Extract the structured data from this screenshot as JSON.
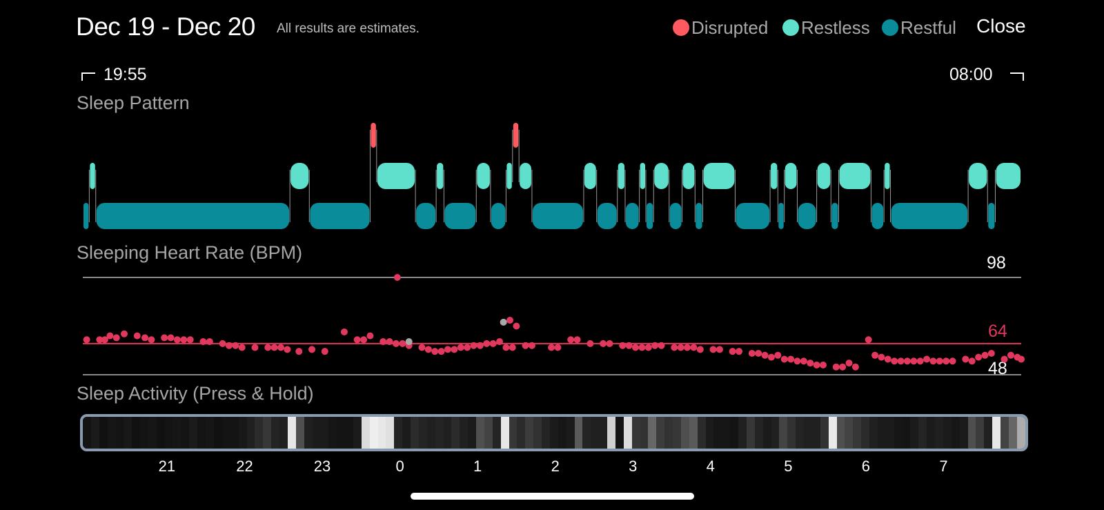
{
  "header": {
    "date_range": "Dec 19 - Dec 20",
    "estimates_note": "All results are estimates.",
    "close_label": "Close"
  },
  "legend": [
    {
      "label": "Disrupted",
      "color": "#ff5a5f"
    },
    {
      "label": "Restless",
      "color": "#5fe0cc"
    },
    {
      "label": "Restful",
      "color": "#0a8c9b"
    }
  ],
  "time_range": {
    "start": "19:55",
    "end": "08:00"
  },
  "sleep_pattern": {
    "title": "Sleep Pattern",
    "colors": {
      "disrupted": "#ff5a5f",
      "restless": "#5fe0cc",
      "restful": "#0a8c9b"
    },
    "segments": [
      {
        "stage": "restful",
        "start": "19:55",
        "end": "20:00"
      },
      {
        "stage": "restless",
        "start": "20:00",
        "end": "20:05"
      },
      {
        "stage": "restful",
        "start": "20:05",
        "end": "22:35"
      },
      {
        "stage": "restless",
        "start": "22:35",
        "end": "22:50"
      },
      {
        "stage": "restful",
        "start": "22:50",
        "end": "23:37"
      },
      {
        "stage": "disrupted",
        "start": "23:37",
        "end": "23:42"
      },
      {
        "stage": "restless",
        "start": "23:42",
        "end": "00:12"
      },
      {
        "stage": "restful",
        "start": "00:12",
        "end": "00:28"
      },
      {
        "stage": "restless",
        "start": "00:28",
        "end": "00:34"
      },
      {
        "stage": "restful",
        "start": "00:34",
        "end": "00:59"
      },
      {
        "stage": "restless",
        "start": "00:59",
        "end": "01:10"
      },
      {
        "stage": "restful",
        "start": "01:10",
        "end": "01:22"
      },
      {
        "stage": "restless",
        "start": "01:22",
        "end": "01:27"
      },
      {
        "stage": "disrupted",
        "start": "01:27",
        "end": "01:32"
      },
      {
        "stage": "restless",
        "start": "01:32",
        "end": "01:42"
      },
      {
        "stage": "restful",
        "start": "01:42",
        "end": "02:22"
      },
      {
        "stage": "restless",
        "start": "02:22",
        "end": "02:32"
      },
      {
        "stage": "restful",
        "start": "02:32",
        "end": "02:48"
      },
      {
        "stage": "restless",
        "start": "02:48",
        "end": "02:54"
      },
      {
        "stage": "restful",
        "start": "02:54",
        "end": "03:05"
      },
      {
        "stage": "restless",
        "start": "03:05",
        "end": "03:10"
      },
      {
        "stage": "restful",
        "start": "03:10",
        "end": "03:16"
      },
      {
        "stage": "restless",
        "start": "03:16",
        "end": "03:28"
      },
      {
        "stage": "restful",
        "start": "03:28",
        "end": "03:38"
      },
      {
        "stage": "restless",
        "start": "03:38",
        "end": "03:48"
      },
      {
        "stage": "restful",
        "start": "03:48",
        "end": "03:54"
      },
      {
        "stage": "restless",
        "start": "03:54",
        "end": "04:19"
      },
      {
        "stage": "restful",
        "start": "04:19",
        "end": "04:46"
      },
      {
        "stage": "restless",
        "start": "04:46",
        "end": "04:52"
      },
      {
        "stage": "restful",
        "start": "04:52",
        "end": "04:57"
      },
      {
        "stage": "restless",
        "start": "04:57",
        "end": "05:07"
      },
      {
        "stage": "restful",
        "start": "05:07",
        "end": "05:22"
      },
      {
        "stage": "restless",
        "start": "05:22",
        "end": "05:33"
      },
      {
        "stage": "restful",
        "start": "05:33",
        "end": "05:39"
      },
      {
        "stage": "restless",
        "start": "05:39",
        "end": "06:04"
      },
      {
        "stage": "restful",
        "start": "06:04",
        "end": "06:14"
      },
      {
        "stage": "restless",
        "start": "06:14",
        "end": "06:19"
      },
      {
        "stage": "restful",
        "start": "06:19",
        "end": "07:19"
      },
      {
        "stage": "restless",
        "start": "07:19",
        "end": "07:34"
      },
      {
        "stage": "restful",
        "start": "07:34",
        "end": "07:40"
      },
      {
        "stage": "restless",
        "start": "07:40",
        "end": "08:00"
      }
    ]
  },
  "heart_rate": {
    "title": "Sleeping Heart Rate (BPM)",
    "max_label": "98",
    "avg_label": "64",
    "min_label": "48",
    "max": 98,
    "avg": 64,
    "min": 48,
    "point_color": "#e3385e",
    "outlier_color": "#a8a8a8",
    "points": [
      [
        "19:58",
        66
      ],
      [
        "20:08",
        66
      ],
      [
        "20:12",
        66
      ],
      [
        "20:16",
        68
      ],
      [
        "20:21",
        67
      ],
      [
        "20:27",
        69
      ],
      [
        "20:37",
        68
      ],
      [
        "20:43",
        67
      ],
      [
        "20:48",
        66
      ],
      [
        "20:58",
        67
      ],
      [
        "21:03",
        67
      ],
      [
        "21:08",
        66
      ],
      [
        "21:13",
        66
      ],
      [
        "21:18",
        66
      ],
      [
        "21:28",
        65
      ],
      [
        "21:33",
        65
      ],
      [
        "21:43",
        64
      ],
      [
        "21:48",
        63
      ],
      [
        "21:53",
        63
      ],
      [
        "21:58",
        62
      ],
      [
        "22:08",
        62
      ],
      [
        "22:18",
        62
      ],
      [
        "22:23",
        62
      ],
      [
        "22:28",
        62
      ],
      [
        "22:33",
        61
      ],
      [
        "22:42",
        60
      ],
      [
        "22:52",
        61
      ],
      [
        "23:02",
        60
      ],
      [
        "23:17",
        70
      ],
      [
        "23:27",
        66
      ],
      [
        "23:32",
        66
      ],
      [
        "23:37",
        68
      ],
      [
        "23:47",
        65
      ],
      [
        "23:52",
        65
      ],
      [
        "23:57",
        64
      ],
      [
        "00:02",
        64
      ],
      [
        "00:07",
        63
      ],
      [
        "00:17",
        62
      ],
      [
        "00:22",
        61
      ],
      [
        "00:27",
        60
      ],
      [
        "00:32",
        60
      ],
      [
        "00:37",
        61
      ],
      [
        "00:42",
        61
      ],
      [
        "00:47",
        62
      ],
      [
        "00:52",
        62
      ],
      [
        "00:57",
        63
      ],
      [
        "01:02",
        63
      ],
      [
        "01:07",
        64
      ],
      [
        "01:12",
        64
      ],
      [
        "01:17",
        65
      ],
      [
        "01:22",
        62
      ],
      [
        "01:27",
        62
      ],
      [
        "01:37",
        63
      ],
      [
        "01:42",
        63
      ],
      [
        "01:57",
        62
      ],
      [
        "02:02",
        62
      ],
      [
        "02:12",
        66
      ],
      [
        "02:17",
        66
      ],
      [
        "02:27",
        64
      ],
      [
        "02:37",
        64
      ],
      [
        "02:42",
        64
      ],
      [
        "02:52",
        63
      ],
      [
        "02:57",
        63
      ],
      [
        "03:02",
        62
      ],
      [
        "03:07",
        62
      ],
      [
        "03:12",
        62
      ],
      [
        "03:17",
        63
      ],
      [
        "03:22",
        63
      ],
      [
        "03:32",
        62
      ],
      [
        "03:37",
        62
      ],
      [
        "03:42",
        62
      ],
      [
        "03:47",
        62
      ],
      [
        "03:52",
        61
      ],
      [
        "04:02",
        61
      ],
      [
        "04:07",
        61
      ],
      [
        "04:17",
        60
      ],
      [
        "04:22",
        60
      ],
      [
        "04:32",
        59
      ],
      [
        "04:37",
        59
      ],
      [
        "04:42",
        58
      ],
      [
        "04:47",
        57
      ],
      [
        "04:52",
        58
      ],
      [
        "04:57",
        56
      ],
      [
        "05:02",
        56
      ],
      [
        "05:07",
        55
      ],
      [
        "05:12",
        55
      ],
      [
        "05:17",
        54
      ],
      [
        "05:22",
        53
      ],
      [
        "05:27",
        53
      ],
      [
        "05:37",
        52
      ],
      [
        "05:42",
        52
      ],
      [
        "05:47",
        54
      ],
      [
        "05:52",
        52
      ],
      [
        "06:02",
        66
      ],
      [
        "06:07",
        58
      ],
      [
        "06:12",
        57
      ],
      [
        "06:17",
        56
      ],
      [
        "06:22",
        55
      ],
      [
        "06:27",
        55
      ],
      [
        "06:32",
        55
      ],
      [
        "06:37",
        55
      ],
      [
        "06:42",
        55
      ],
      [
        "06:47",
        56
      ],
      [
        "06:52",
        55
      ],
      [
        "06:57",
        55
      ],
      [
        "07:02",
        55
      ],
      [
        "07:07",
        55
      ],
      [
        "07:17",
        56
      ],
      [
        "07:22",
        55
      ],
      [
        "07:27",
        57
      ],
      [
        "07:32",
        58
      ],
      [
        "07:37",
        59
      ],
      [
        "07:47",
        56
      ],
      [
        "07:52",
        58
      ],
      [
        "07:57",
        57
      ],
      [
        "08:00",
        56
      ],
      [
        "23:58",
        98
      ],
      [
        "01:25",
        76
      ],
      [
        "01:30",
        73
      ]
    ],
    "outliers": [
      [
        "00:07",
        65
      ],
      [
        "01:20",
        75
      ]
    ]
  },
  "sleep_activity": {
    "title": "Sleep Activity (Press & Hold)",
    "levels": [
      0.05,
      0.08,
      0.04,
      0.06,
      0.05,
      0.07,
      0.04,
      0.05,
      0.06,
      0.04,
      0.05,
      0.06,
      0.05,
      0.08,
      0.05,
      0.06,
      0.04,
      0.05,
      0.05,
      0.07,
      0.1,
      0.15,
      0.2,
      0.12,
      0.1,
      0.95,
      0.3,
      0.1,
      0.08,
      0.08,
      0.06,
      0.05,
      0.05,
      0.08,
      0.9,
      0.98,
      0.95,
      0.92,
      0.12,
      0.08,
      0.15,
      0.12,
      0.1,
      0.12,
      0.1,
      0.15,
      0.1,
      0.08,
      0.3,
      0.25,
      0.12,
      0.95,
      0.2,
      0.15,
      0.22,
      0.18,
      0.12,
      0.08,
      0.06,
      0.08,
      0.35,
      0.12,
      0.1,
      0.1,
      0.85,
      0.05,
      0.9,
      0.2,
      0.18,
      0.4,
      0.22,
      0.18,
      0.2,
      0.3,
      0.35,
      0.15,
      0.08,
      0.06,
      0.06,
      0.05,
      0.1,
      0.2,
      0.12,
      0.08,
      0.1,
      0.25,
      0.18,
      0.12,
      0.1,
      0.1,
      0.18,
      0.96,
      0.3,
      0.25,
      0.2,
      0.15,
      0.1,
      0.08,
      0.08,
      0.06,
      0.05,
      0.08,
      0.12,
      0.08,
      0.1,
      0.08,
      0.06,
      0.08,
      0.3,
      0.22,
      0.1,
      0.95,
      0.25,
      0.4,
      0.7
    ]
  },
  "time_axis": {
    "ticks": [
      "21",
      "22",
      "23",
      "0",
      "1",
      "2",
      "3",
      "4",
      "5",
      "6",
      "7"
    ]
  }
}
